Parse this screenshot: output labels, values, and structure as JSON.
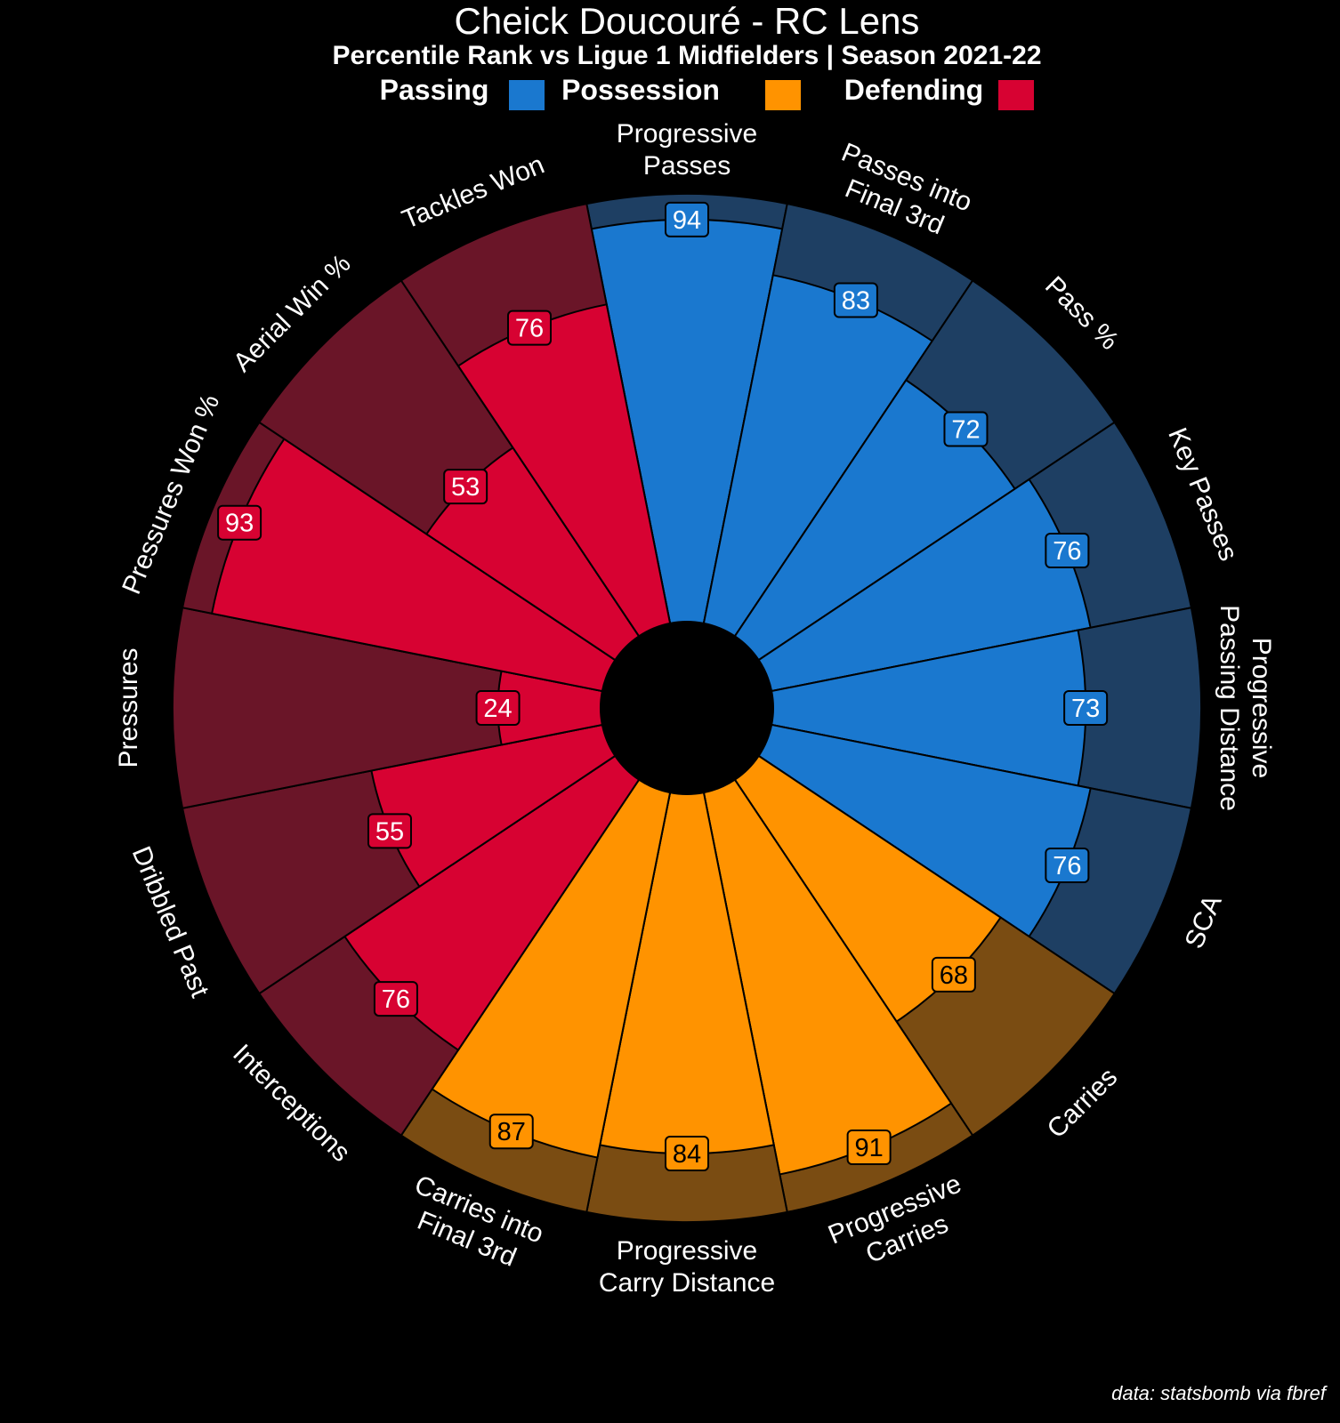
{
  "chart_data": {
    "type": "pizza",
    "title": "Cheick Doucouré - RC Lens",
    "subtitle": "Percentile Rank vs Ligue 1 Midfielders | Season 2021-22",
    "range": [
      0,
      100
    ],
    "legend": [
      {
        "label": "Passing",
        "color": "#1a78cf"
      },
      {
        "label": "Possession",
        "color": "#ff9300"
      },
      {
        "label": "Defending",
        "color": "#d70232"
      }
    ],
    "groups": {
      "Passing": {
        "fill": "#1a78cf",
        "bg": "#1e3f63",
        "text": "#ffffff"
      },
      "Possession": {
        "fill": "#ff9300",
        "bg": "#7a4c12",
        "text": "#000000"
      },
      "Defending": {
        "fill": "#d70232",
        "bg": "#6a1528",
        "text": "#ffffff"
      }
    },
    "params": [
      {
        "label": "Progressive\nPasses",
        "value": 94,
        "group": "Passing"
      },
      {
        "label": "Passes into\nFinal 3rd",
        "value": 83,
        "group": "Passing"
      },
      {
        "label": "Pass %",
        "value": 72,
        "group": "Passing"
      },
      {
        "label": "Key Passes",
        "value": 76,
        "group": "Passing"
      },
      {
        "label": "Progressive\nPassing Distance",
        "value": 73,
        "group": "Passing"
      },
      {
        "label": "SCA",
        "value": 76,
        "group": "Passing"
      },
      {
        "label": "Carries",
        "value": 68,
        "group": "Possession"
      },
      {
        "label": "Progressive\nCarries",
        "value": 91,
        "group": "Possession"
      },
      {
        "label": "Progressive\nCarry Distance",
        "value": 84,
        "group": "Possession"
      },
      {
        "label": "Carries into\nFinal 3rd",
        "value": 87,
        "group": "Possession"
      },
      {
        "label": "Interceptions",
        "value": 76,
        "group": "Defending"
      },
      {
        "label": "Dribbled Past",
        "value": 55,
        "group": "Defending"
      },
      {
        "label": "Pressures",
        "value": 24,
        "group": "Defending"
      },
      {
        "label": "Pressures Won %",
        "value": 93,
        "group": "Defending"
      },
      {
        "label": "Aerial Win %",
        "value": 53,
        "group": "Defending"
      },
      {
        "label": "Tackles Won",
        "value": 76,
        "group": "Defending"
      }
    ],
    "footnote": "data: statsbomb via fbref"
  }
}
